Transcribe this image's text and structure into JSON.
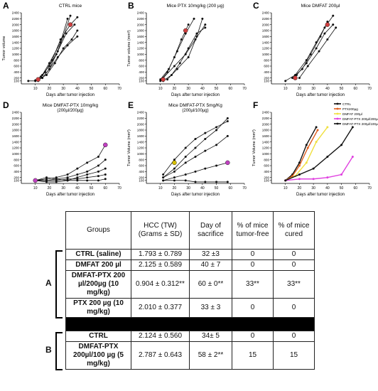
{
  "chart_data": [
    {
      "type": "line",
      "letter": "A",
      "title": "CTRL mice",
      "ylabel": "Tumor volume",
      "xlabel": "Days after tumor injection",
      "xlim": [
        0,
        70
      ],
      "ylim": [
        0,
        2400
      ],
      "xticks": [
        "10",
        "20",
        "30",
        "40",
        "50",
        "60",
        "70"
      ],
      "yticks": [
        "100",
        "200",
        "400",
        "600",
        "800",
        "1000",
        "1200",
        "1400",
        "1600",
        "1800",
        "2000",
        "2200",
        "2400"
      ],
      "series": [
        {
          "color": "#111111",
          "x": [
            5,
            10,
            15,
            20,
            28,
            33
          ],
          "y": [
            100,
            100,
            300,
            700,
            1400,
            2200
          ]
        },
        {
          "color": "#111111",
          "x": [
            10,
            15,
            20,
            25,
            30,
            35
          ],
          "y": [
            120,
            200,
            500,
            1000,
            1600,
            2300
          ]
        },
        {
          "color": "#111111",
          "x": [
            10,
            14,
            20,
            26,
            32,
            38
          ],
          "y": [
            100,
            250,
            600,
            1100,
            1700,
            2000
          ]
        },
        {
          "color": "#111111",
          "x": [
            12,
            18,
            24,
            30,
            36,
            40
          ],
          "y": [
            150,
            300,
            700,
            1200,
            1500,
            1800
          ]
        },
        {
          "color": "#111111",
          "x": [
            15,
            20,
            26,
            33,
            40
          ],
          "y": [
            200,
            500,
            900,
            1300,
            1600
          ]
        },
        {
          "color": "#111111",
          "x": [
            12,
            17,
            22,
            28,
            35,
            40
          ],
          "y": [
            100,
            400,
            800,
            1500,
            2000,
            2250
          ]
        }
      ],
      "markers": [
        {
          "x": 12,
          "y": 150,
          "color": "#d04040"
        },
        {
          "x": 35,
          "y": 2000,
          "color": "#d04040"
        }
      ]
    },
    {
      "type": "line",
      "letter": "B",
      "title": "Mice PTX 10mg/kg (200 µg)",
      "ylabel": "Tumor volume (mm³)",
      "xlabel": "Days after tumor injection",
      "xlim": [
        0,
        70
      ],
      "ylim": [
        0,
        2400
      ],
      "xticks": [
        "10",
        "20",
        "30",
        "40",
        "50",
        "60",
        "70"
      ],
      "yticks": [
        "100",
        "200",
        "400",
        "600",
        "800",
        "1000",
        "1200",
        "1400",
        "1600",
        "1800",
        "2000",
        "2200",
        "2400"
      ],
      "series": [
        {
          "color": "#111111",
          "x": [
            10,
            15,
            20,
            25,
            30
          ],
          "y": [
            100,
            400,
            900,
            1500,
            2000
          ]
        },
        {
          "color": "#111111",
          "x": [
            10,
            16,
            22,
            28,
            34
          ],
          "y": [
            150,
            500,
            1100,
            1700,
            2200
          ]
        },
        {
          "color": "#111111",
          "x": [
            12,
            18,
            24,
            30,
            36,
            42
          ],
          "y": [
            100,
            300,
            700,
            1200,
            1700,
            1900
          ]
        },
        {
          "color": "#111111",
          "x": [
            12,
            20,
            28,
            35,
            42
          ],
          "y": [
            200,
            600,
            1000,
            1500,
            2000
          ]
        },
        {
          "color": "#111111",
          "x": [
            15,
            22,
            30,
            36,
            40
          ],
          "y": [
            150,
            500,
            900,
            1600,
            2200
          ]
        }
      ],
      "markers": [
        {
          "x": 12,
          "y": 150,
          "color": "#d04040"
        },
        {
          "x": 28,
          "y": 1800,
          "color": "#d04040"
        }
      ]
    },
    {
      "type": "line",
      "letter": "C",
      "title": "Mice DMFAT 200µl",
      "ylabel": "",
      "xlabel": "Days after tumor injection",
      "xlim": [
        0,
        70
      ],
      "ylim": [
        0,
        2400
      ],
      "xticks": [
        "10",
        "20",
        "30",
        "40",
        "50",
        "60",
        "70"
      ],
      "yticks": [
        "100",
        "200",
        "400",
        "600",
        "800",
        "1000",
        "1200",
        "1400",
        "1600",
        "1800",
        "2000",
        "2200",
        "2400"
      ],
      "series": [
        {
          "color": "#111111",
          "x": [
            10,
            17,
            25,
            32,
            38,
            44
          ],
          "y": [
            100,
            300,
            800,
            1400,
            1900,
            2300
          ]
        },
        {
          "color": "#111111",
          "x": [
            15,
            22,
            28,
            35,
            40
          ],
          "y": [
            200,
            500,
            1000,
            1600,
            2100
          ]
        },
        {
          "color": "#111111",
          "x": [
            18,
            25,
            32,
            38,
            44
          ],
          "y": [
            300,
            700,
            1200,
            1700,
            2000
          ]
        },
        {
          "color": "#111111",
          "x": [
            20,
            26,
            34,
            40,
            46
          ],
          "y": [
            200,
            600,
            1100,
            1500,
            1900
          ]
        }
      ],
      "markers": [
        {
          "x": 17,
          "y": 200,
          "color": "#d04040"
        },
        {
          "x": 40,
          "y": 2000,
          "color": "#d04040"
        }
      ]
    },
    {
      "type": "line",
      "letter": "D",
      "title": "Mice DMFAT-PTX 10mg/kg",
      "subtitle": "(200µl/200µg)",
      "ylabel": "",
      "xlabel": "Days after tumor injection",
      "xlim": [
        0,
        70
      ],
      "ylim": [
        0,
        2400
      ],
      "xticks": [
        "10",
        "20",
        "30",
        "40",
        "50",
        "60",
        "70"
      ],
      "yticks": [
        "100",
        "200",
        "400",
        "600",
        "800",
        "1000",
        "1200",
        "1400",
        "1600",
        "1800",
        "2000",
        "2200",
        "2400"
      ],
      "series": [
        {
          "color": "#111111",
          "x": [
            10,
            18,
            25,
            33,
            40,
            47,
            55,
            60
          ],
          "y": [
            100,
            150,
            200,
            300,
            500,
            700,
            900,
            1300
          ]
        },
        {
          "color": "#111111",
          "x": [
            10,
            18,
            25,
            33,
            40,
            47,
            55,
            60
          ],
          "y": [
            100,
            100,
            150,
            200,
            300,
            400,
            600,
            800
          ]
        },
        {
          "color": "#111111",
          "x": [
            10,
            18,
            25,
            33,
            40,
            47,
            55,
            60
          ],
          "y": [
            100,
            200,
            150,
            100,
            200,
            300,
            400,
            500
          ]
        },
        {
          "color": "#111111",
          "x": [
            10,
            18,
            25,
            33,
            40,
            47,
            55,
            60
          ],
          "y": [
            100,
            100,
            100,
            150,
            150,
            200,
            250,
            300
          ]
        },
        {
          "color": "#111111",
          "x": [
            10,
            18,
            25,
            33,
            40,
            47,
            55,
            60
          ],
          "y": [
            100,
            50,
            50,
            100,
            100,
            100,
            100,
            150
          ]
        }
      ],
      "markers": [
        {
          "x": 10,
          "y": 100,
          "color": "#c040c0"
        },
        {
          "x": 60,
          "y": 1300,
          "color": "#c040c0"
        }
      ]
    },
    {
      "type": "line",
      "letter": "E",
      "title": "Mice DMFAT-PTX 5mg/Kg",
      "subtitle": "(200µl/100µg)",
      "ylabel": "Tumor Volume (mm³)",
      "xlabel": "Days after tumor injection",
      "xlim": [
        0,
        70
      ],
      "ylim": [
        0,
        2400
      ],
      "xticks": [
        "10",
        "20",
        "30",
        "40",
        "50",
        "60",
        "70"
      ],
      "yticks": [
        "100",
        "200",
        "400",
        "600",
        "800",
        "1000",
        "1200",
        "1400",
        "1600",
        "1800",
        "2000",
        "2200",
        "2400"
      ],
      "series": [
        {
          "color": "#111111",
          "x": [
            12,
            20,
            28,
            35,
            42,
            50,
            58
          ],
          "y": [
            200,
            500,
            900,
            1200,
            1500,
            1800,
            2200
          ]
        },
        {
          "color": "#111111",
          "x": [
            12,
            20,
            28,
            35,
            42,
            50,
            58
          ],
          "y": [
            300,
            800,
            1200,
            1500,
            1700,
            1900,
            2100
          ]
        },
        {
          "color": "#111111",
          "x": [
            12,
            20,
            28,
            35,
            42,
            50,
            58
          ],
          "y": [
            200,
            400,
            700,
            900,
            1100,
            1300,
            1600
          ]
        },
        {
          "color": "#111111",
          "x": [
            12,
            20,
            28,
            35,
            42,
            50,
            58
          ],
          "y": [
            100,
            200,
            300,
            400,
            500,
            600,
            700
          ]
        },
        {
          "color": "#111111",
          "x": [
            12,
            20,
            28,
            35,
            42,
            50,
            58
          ],
          "y": [
            100,
            100,
            100,
            50,
            50,
            50,
            50
          ]
        }
      ],
      "markers": [
        {
          "x": 20,
          "y": 700,
          "color": "#d8c000"
        },
        {
          "x": 58,
          "y": 700,
          "color": "#c040c0"
        }
      ]
    },
    {
      "type": "line",
      "letter": "F",
      "title": "",
      "ylabel": "Tumor Volume (mm³)",
      "xlabel": "Days after tumor injection",
      "xlim": [
        0,
        70
      ],
      "ylim": [
        0,
        2400
      ],
      "xticks": [
        "10",
        "20",
        "30",
        "40",
        "50",
        "60",
        "70"
      ],
      "yticks": [
        "100",
        "200",
        "400",
        "600",
        "800",
        "1000",
        "1200",
        "1400",
        "1600",
        "1800",
        "2000",
        "2200",
        "2400"
      ],
      "legend": "top-right",
      "series": [
        {
          "name": "CTRL",
          "color": "#111111",
          "x": [
            10,
            15,
            20,
            25,
            32
          ],
          "y": [
            100,
            300,
            700,
            1300,
            1900
          ]
        },
        {
          "name": "PTX200µg",
          "color": "#e06020",
          "x": [
            10,
            15,
            20,
            26,
            33
          ],
          "y": [
            100,
            250,
            600,
            1200,
            1800
          ]
        },
        {
          "name": "DMFAT 200µl",
          "color": "#f0e040",
          "x": [
            10,
            17,
            25,
            32,
            40
          ],
          "y": [
            100,
            250,
            700,
            1400,
            1900
          ]
        },
        {
          "name": "DMFAT-PTX 200µl/200µg",
          "color": "#e040e0",
          "x": [
            10,
            20,
            30,
            40,
            50,
            58
          ],
          "y": [
            100,
            150,
            150,
            200,
            300,
            900
          ]
        },
        {
          "name": "DMFAT-PTX 200µl/100µg",
          "color": "#111111",
          "x": [
            10,
            20,
            30,
            40,
            50,
            58
          ],
          "y": [
            100,
            300,
            500,
            900,
            1300,
            1900
          ]
        }
      ]
    }
  ],
  "table": {
    "headers": [
      "Groups",
      "HCC (TW) (Grams ± SD)",
      "Day of sacrifice",
      "% of mice tumor-free",
      "% of mice cured"
    ],
    "group_a_label": "A",
    "group_b_label": "B",
    "rows_a": [
      [
        "CTRL (saline)",
        "1.793 ± 0.789",
        "32 ±3",
        "0",
        "0"
      ],
      [
        "DMFAT 200 µl",
        "2.125 ± 0.589",
        "40 ± 7",
        "0",
        "0"
      ],
      [
        "DMFAT-PTX 200 µl/200µg (10 mg/kg)",
        "0.904 ± 0.312**",
        "60 ± 0**",
        "33**",
        "33**"
      ],
      [
        "PTX 200 µg (10 mg/kg)",
        "2.010 ± 0.377",
        "33 ± 3",
        "0",
        "0"
      ]
    ],
    "rows_b": [
      [
        "CTRL",
        "2.124 ± 0.560",
        "34± 5",
        "0",
        "0"
      ],
      [
        "DMFAT-PTX 200µl/100 µg (5 mg/kg)",
        "2.787 ± 0.643",
        "58 ± 2**",
        "15",
        "15"
      ]
    ]
  }
}
